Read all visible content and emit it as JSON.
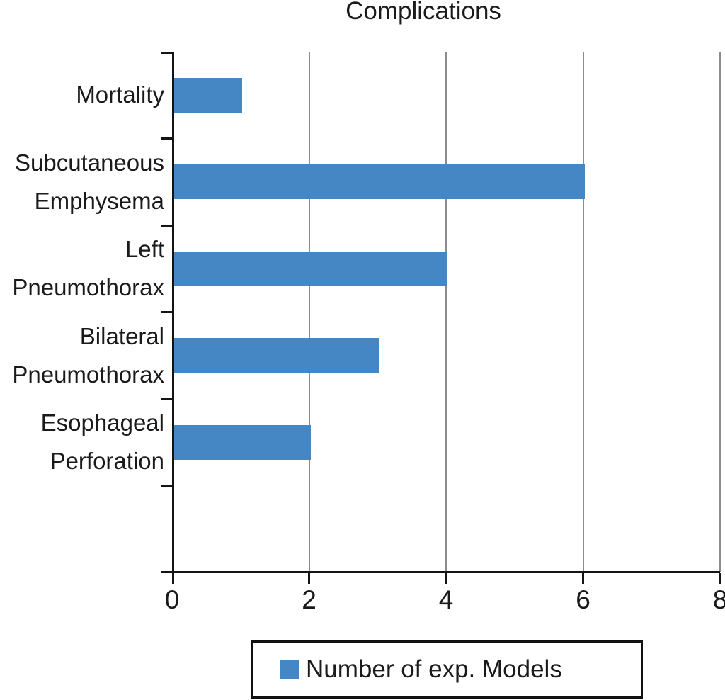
{
  "title": "Complications",
  "chart_data": {
    "type": "bar",
    "orientation": "horizontal",
    "title": "Complications",
    "categories": [
      "Mortality",
      "Subcutaneous Emphysema",
      "Left Pneumothorax",
      "Bilateral Pneumothorax",
      "Esophageal Perforation",
      ""
    ],
    "category_lines": [
      [
        "Mortality"
      ],
      [
        "Subcutaneous",
        "Emphysema"
      ],
      [
        "Left",
        "Pneumothorax"
      ],
      [
        "Bilateral",
        "Pneumothorax"
      ],
      [
        "Esophageal",
        "Perforation"
      ],
      []
    ],
    "values": [
      1,
      6,
      4,
      3,
      2,
      null
    ],
    "series": [
      {
        "name": "Number of exp. Models",
        "values": [
          1,
          6,
          4,
          3,
          2,
          null
        ]
      }
    ],
    "xlabel": "",
    "ylabel": "",
    "xlim": [
      0,
      8
    ],
    "x_ticks": [
      "0",
      "2",
      "4",
      "6",
      "8"
    ],
    "grid": "vertical-gridlines-at-2-4-6-8",
    "legend_position": "bottom-center"
  },
  "legend": {
    "label": "Number of exp. Models"
  },
  "colors": {
    "bar": "#4586C5",
    "grid": "#8c8c8c",
    "axis": "#141414",
    "text": "#1a1a1a",
    "legend_border": "#111111"
  }
}
